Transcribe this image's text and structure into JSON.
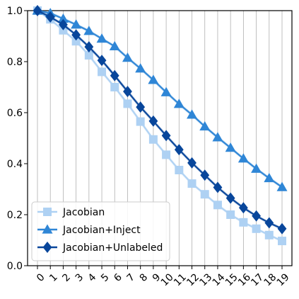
{
  "chart_data": {
    "type": "line",
    "title": "",
    "xlabel": "",
    "ylabel": "",
    "x": [
      0,
      1,
      2,
      3,
      4,
      5,
      6,
      7,
      8,
      9,
      10,
      11,
      12,
      13,
      14,
      15,
      16,
      17,
      18,
      19
    ],
    "xtick_labels": [
      "0",
      "1",
      "2",
      "3",
      "4",
      "5",
      "6",
      "7",
      "8",
      "9",
      "10",
      "11",
      "12",
      "13",
      "14",
      "15",
      "16",
      "17",
      "18",
      "19"
    ],
    "ylim": [
      0.0,
      1.0
    ],
    "yticks": [
      0.0,
      0.2,
      0.4,
      0.6,
      0.8,
      1.0
    ],
    "ytick_labels": [
      "0.0",
      "0.2",
      "0.4",
      "0.6",
      "0.8",
      "1.0"
    ],
    "grid": "vertical",
    "legend_position": "lower-left",
    "series": [
      {
        "name": "Jacobian",
        "marker": "square",
        "color": "#aed1f3",
        "values": [
          1.0,
          0.966,
          0.923,
          0.88,
          0.825,
          0.76,
          0.7,
          0.635,
          0.565,
          0.495,
          0.435,
          0.375,
          0.322,
          0.28,
          0.238,
          0.2,
          0.17,
          0.145,
          0.12,
          0.097
        ]
      },
      {
        "name": "Jacobian+Inject",
        "marker": "triangle",
        "color": "#2f86d6",
        "values": [
          1.0,
          0.99,
          0.968,
          0.945,
          0.92,
          0.89,
          0.86,
          0.815,
          0.773,
          0.728,
          0.68,
          0.634,
          0.592,
          0.546,
          0.503,
          0.462,
          0.42,
          0.38,
          0.343,
          0.308
        ]
      },
      {
        "name": "Jacobian+Unlabeled",
        "marker": "diamond",
        "color": "#08469b",
        "values": [
          1.0,
          0.975,
          0.945,
          0.905,
          0.858,
          0.805,
          0.745,
          0.683,
          0.622,
          0.567,
          0.51,
          0.455,
          0.403,
          0.355,
          0.307,
          0.265,
          0.227,
          0.195,
          0.168,
          0.145
        ]
      }
    ]
  }
}
